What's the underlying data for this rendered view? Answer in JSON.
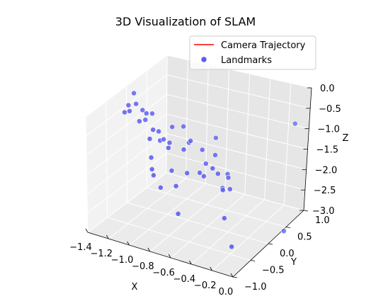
{
  "chart_data": {
    "type": "scatter",
    "projection": "3d",
    "title": "3D Visualization of SLAM",
    "xlabel": "X",
    "ylabel": "Y",
    "zlabel": "Z",
    "grid": true,
    "xlim": [
      -1.4,
      0.0
    ],
    "ylim": [
      -1.0,
      1.0
    ],
    "zlim": [
      -3.0,
      0.0
    ],
    "x_ticks": [
      "−1.4",
      "−1.2",
      "−1.0",
      "−0.8",
      "−0.6",
      "−0.4",
      "−0.2",
      "0.0"
    ],
    "y_ticks": [
      "−1.0",
      "−0.5",
      "0.0",
      "0.5",
      "1.0"
    ],
    "z_ticks": [
      "0.0",
      "−0.5",
      "−1.0",
      "−1.5",
      "−2.0",
      "−2.5",
      "−3.0"
    ],
    "legend": {
      "position": "top-right",
      "entries": [
        {
          "label": "Camera Trajectory",
          "marker": "line",
          "color": "#ff0000"
        },
        {
          "label": "Landmarks",
          "marker": "dot",
          "color": "#5b5bf0"
        }
      ]
    },
    "series": [
      {
        "name": "Camera Trajectory",
        "kind": "line",
        "color": "#ff0000",
        "points": []
      },
      {
        "name": "Landmarks",
        "kind": "scatter",
        "color": "#5b5bf0",
        "points": [
          [
            -1.34,
            0.03,
            -0.17
          ],
          [
            -1.35,
            -0.08,
            -0.4
          ],
          [
            -1.36,
            -0.15,
            -0.53
          ],
          [
            -1.32,
            -0.13,
            -0.49
          ],
          [
            -1.3,
            -0.02,
            -0.38
          ],
          [
            -1.25,
            0.01,
            -0.53
          ],
          [
            -1.19,
            -0.05,
            -0.53
          ],
          [
            -1.23,
            -0.12,
            -0.7
          ],
          [
            -1.18,
            0.07,
            -0.62
          ],
          [
            -1.2,
            -0.05,
            -0.7
          ],
          [
            -1.1,
            -0.2,
            -1.0
          ],
          [
            -1.06,
            -0.08,
            -0.88
          ],
          [
            -1.02,
            -0.15,
            -1.03
          ],
          [
            -1.02,
            -0.06,
            -1.07
          ],
          [
            -1.04,
            -0.32,
            -1.34
          ],
          [
            -1.01,
            -0.38,
            -1.57
          ],
          [
            -0.98,
            -0.42,
            -1.67
          ],
          [
            -0.92,
            0.18,
            -0.87
          ],
          [
            -0.9,
            -0.45,
            -1.9
          ],
          [
            -0.88,
            -0.22,
            -1.64
          ],
          [
            -0.85,
            0.14,
            -1.2
          ],
          [
            -0.79,
            0.02,
            -1.02
          ],
          [
            -0.77,
            -0.4,
            -1.81
          ],
          [
            -0.72,
            -0.25,
            -1.57
          ],
          [
            -0.7,
            -0.53,
            -2.35
          ],
          [
            -0.65,
            -0.05,
            -1.1
          ],
          [
            -0.62,
            -0.19,
            -1.54
          ],
          [
            -0.62,
            -0.03,
            -1.44
          ],
          [
            -0.58,
            -0.19,
            -1.6
          ],
          [
            -0.55,
            0.02,
            -1.22
          ],
          [
            -0.5,
            -0.18,
            -1.36
          ],
          [
            -0.48,
            -0.09,
            -1.55
          ],
          [
            -0.44,
            0.06,
            -1.65
          ],
          [
            -0.4,
            -0.18,
            -1.78
          ],
          [
            -0.4,
            -0.03,
            -1.64
          ],
          [
            -0.36,
            -0.09,
            -1.85
          ],
          [
            -0.34,
            -0.34,
            -1.66
          ],
          [
            -0.25,
            -0.54,
            -2.13
          ],
          [
            -0.12,
            -0.7,
            -2.6
          ],
          [
            -0.73,
            0.52,
            -1.3
          ],
          [
            -0.92,
            -0.2,
            -1.11
          ],
          [
            -1.08,
            -0.17,
            -0.78
          ],
          [
            -1.04,
            0.21,
            -0.98
          ],
          [
            -0.97,
            -0.04,
            -1.14
          ],
          [
            -0.81,
            -0.1,
            -1.16
          ],
          [
            -0.2,
            1.18,
            -1.14
          ],
          [
            -0.01,
            0.47,
            -3.08
          ]
        ]
      }
    ]
  }
}
